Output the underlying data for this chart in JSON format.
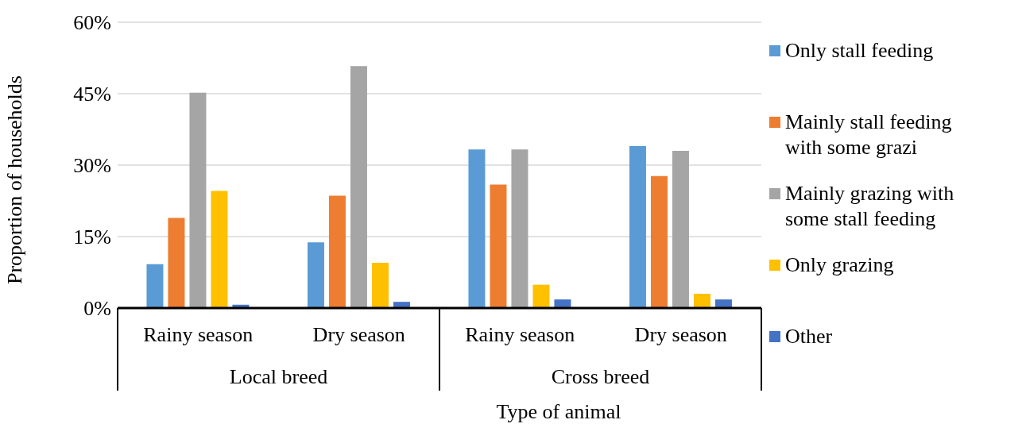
{
  "chart_data": {
    "type": "bar",
    "xlabel": "Type of animal",
    "ylabel": "Proportion of households",
    "categories": [
      "Rainy season",
      "Dry season",
      "Rainy season",
      "Dry season"
    ],
    "annotations": [
      "Local breed",
      "Cross breed"
    ],
    "series": [
      {
        "name": "Only stall feeding",
        "color": "#5b9bd5",
        "values": [
          9.2,
          13.8,
          33.3,
          34.0
        ]
      },
      {
        "name": "Mainly stall feeding with some grazi",
        "color": "#ed7d31",
        "values": [
          18.9,
          23.6,
          25.9,
          27.7
        ]
      },
      {
        "name": "Mainly grazing with some stall feeding",
        "color": "#a5a5a5",
        "values": [
          45.2,
          50.8,
          33.3,
          33.0
        ]
      },
      {
        "name": "Only grazing",
        "color": "#ffc000",
        "values": [
          24.6,
          9.5,
          4.9,
          3.0
        ]
      },
      {
        "name": "Other",
        "color": "#4472c4",
        "values": [
          0.7,
          1.3,
          1.8,
          1.8
        ]
      }
    ],
    "ylim": [
      0,
      60
    ],
    "yticks": [
      {
        "value": 0,
        "label": "0%"
      },
      {
        "value": 15,
        "label": "15%"
      },
      {
        "value": 30,
        "label": "30%"
      },
      {
        "value": 45,
        "label": "45%"
      },
      {
        "value": 60,
        "label": "60%"
      }
    ],
    "grid": "y",
    "legend": "right"
  }
}
